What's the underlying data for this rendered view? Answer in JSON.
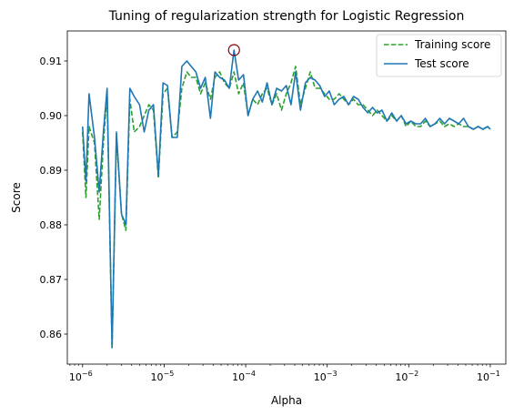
{
  "chart_data": {
    "type": "line",
    "title": "Tuning of regularization strength for Logistic Regression",
    "xlabel": "Alpha",
    "ylabel": "Score",
    "x_scale": "log",
    "xlim": [
      6.5e-07,
      0.155
    ],
    "ylim": [
      0.8545,
      0.9155
    ],
    "x_ticks": [
      {
        "value": 1e-06,
        "base": "10",
        "exp": "−6"
      },
      {
        "value": 1e-05,
        "base": "10",
        "exp": "−5"
      },
      {
        "value": 0.0001,
        "base": "10",
        "exp": "−4"
      },
      {
        "value": 0.001,
        "base": "10",
        "exp": "−3"
      },
      {
        "value": 0.01,
        "base": "10",
        "exp": "−2"
      },
      {
        "value": 0.1,
        "base": "10",
        "exp": "−1"
      }
    ],
    "y_ticks": [
      "0.86",
      "0.87",
      "0.88",
      "0.89",
      "0.90",
      "0.91"
    ],
    "grid": false,
    "legend_position": "top-right",
    "x": [
      1e-06,
      1.1e-06,
      1.2e-06,
      1.4e-06,
      1.6e-06,
      1.8e-06,
      2e-06,
      2.3e-06,
      2.6e-06,
      3e-06,
      3.4e-06,
      3.8e-06,
      4.3e-06,
      5e-06,
      5.7e-06,
      6.5e-06,
      7.4e-06,
      8.5e-06,
      9.7e-06,
      1.1e-05,
      1.25e-05,
      1.45e-05,
      1.65e-05,
      1.9e-05,
      2.15e-05,
      2.45e-05,
      2.8e-05,
      3.2e-05,
      3.7e-05,
      4.2e-05,
      4.8e-05,
      5.5e-05,
      6.3e-05,
      7.2e-05,
      8.2e-05,
      9.4e-05,
      0.000107,
      0.000122,
      0.00014,
      0.00016,
      0.000183,
      0.00021,
      0.00024,
      0.000275,
      0.000315,
      0.00036,
      0.00041,
      0.00047,
      0.00054,
      0.00062,
      0.00071,
      0.00081,
      0.00093,
      0.00106,
      0.00122,
      0.0014,
      0.0016,
      0.00183,
      0.0021,
      0.0024,
      0.00275,
      0.00315,
      0.0036,
      0.0041,
      0.0047,
      0.0054,
      0.0062,
      0.0071,
      0.0081,
      0.0093,
      0.0106,
      0.0122,
      0.014,
      0.016,
      0.0183,
      0.021,
      0.024,
      0.0275,
      0.0315,
      0.036,
      0.041,
      0.047,
      0.054,
      0.062,
      0.071,
      0.081,
      0.093,
      0.1
    ],
    "series": [
      {
        "name": "Training score",
        "color": "#2ca02c",
        "style": "dashed",
        "values": [
          0.897,
          0.885,
          0.898,
          0.895,
          0.881,
          0.895,
          0.904,
          0.8575,
          0.896,
          0.882,
          0.879,
          0.903,
          0.897,
          0.898,
          0.9,
          0.902,
          0.901,
          0.8885,
          0.904,
          0.905,
          0.896,
          0.897,
          0.905,
          0.908,
          0.907,
          0.907,
          0.904,
          0.906,
          0.903,
          0.907,
          0.908,
          0.906,
          0.905,
          0.908,
          0.904,
          0.906,
          0.9,
          0.903,
          0.902,
          0.904,
          0.905,
          0.902,
          0.904,
          0.901,
          0.904,
          0.906,
          0.909,
          0.902,
          0.905,
          0.908,
          0.905,
          0.905,
          0.904,
          0.903,
          0.903,
          0.904,
          0.903,
          0.902,
          0.903,
          0.902,
          0.902,
          0.901,
          0.9,
          0.901,
          0.9,
          0.899,
          0.9,
          0.899,
          0.9,
          0.898,
          0.899,
          0.898,
          0.898,
          0.899,
          0.898,
          0.8985,
          0.899,
          0.898,
          0.8985,
          0.898,
          0.8985,
          0.898,
          0.898,
          0.8975,
          0.898,
          0.8975,
          0.898,
          0.8975
        ]
      },
      {
        "name": "Test score",
        "color": "#1f77b4",
        "style": "solid",
        "values": [
          0.898,
          0.888,
          0.904,
          0.896,
          0.886,
          0.897,
          0.905,
          0.8575,
          0.897,
          0.882,
          0.88,
          0.905,
          0.9035,
          0.902,
          0.897,
          0.901,
          0.902,
          0.889,
          0.906,
          0.9055,
          0.896,
          0.896,
          0.909,
          0.91,
          0.909,
          0.908,
          0.905,
          0.907,
          0.8995,
          0.908,
          0.907,
          0.9065,
          0.905,
          0.912,
          0.9065,
          0.9075,
          0.9,
          0.903,
          0.9045,
          0.9025,
          0.906,
          0.902,
          0.905,
          0.9045,
          0.9055,
          0.902,
          0.908,
          0.901,
          0.906,
          0.907,
          0.9065,
          0.9055,
          0.9035,
          0.9045,
          0.902,
          0.903,
          0.9035,
          0.902,
          0.9035,
          0.903,
          0.9015,
          0.9005,
          0.9015,
          0.9005,
          0.901,
          0.899,
          0.9005,
          0.899,
          0.9,
          0.8985,
          0.899,
          0.8985,
          0.8985,
          0.8995,
          0.898,
          0.8985,
          0.8995,
          0.8985,
          0.8995,
          0.899,
          0.8985,
          0.8995,
          0.898,
          0.8975,
          0.898,
          0.8975,
          0.898,
          0.8975
        ]
      }
    ],
    "highlight": {
      "x": 7.2e-05,
      "y": 0.912,
      "color": "#8b0000",
      "shape": "open-circle"
    }
  }
}
